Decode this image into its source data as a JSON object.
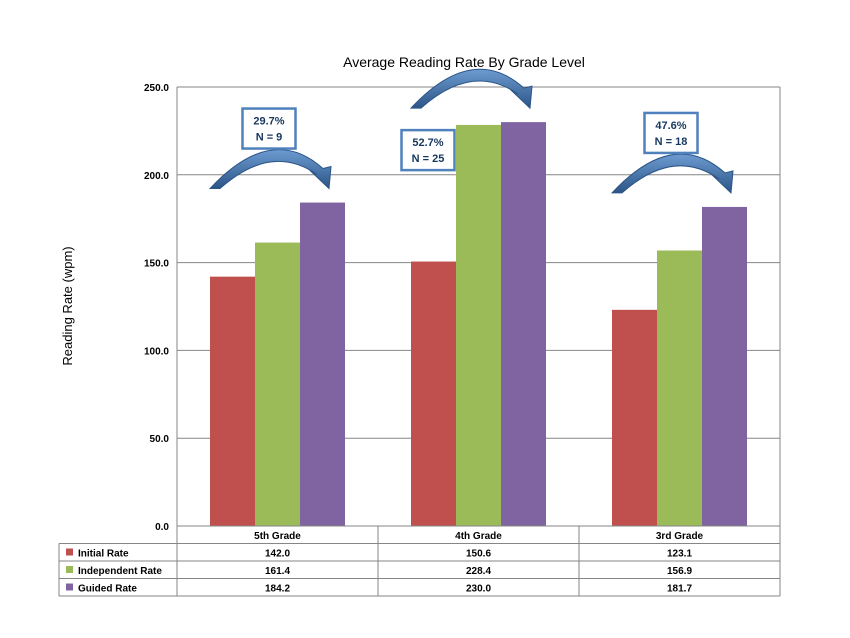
{
  "chart_data": {
    "type": "bar",
    "title": "Average Reading Rate By Grade Level",
    "ylabel": "Reading Rate (wpm)",
    "xlabel": "",
    "ylim": [
      0,
      250
    ],
    "yticks": [
      "0.0",
      "50.0",
      "100.0",
      "150.0",
      "200.0",
      "250.0"
    ],
    "grid": true,
    "legend_placement": "data-table-left",
    "categories": [
      "5th Grade",
      "4th Grade",
      "3rd Grade"
    ],
    "series": [
      {
        "name": "Initial Rate",
        "color": "#C0504D",
        "values": [
          142.0,
          150.6,
          123.1
        ],
        "labels": [
          "142.0",
          "150.6",
          "123.1"
        ]
      },
      {
        "name": "Independent Rate",
        "color": "#9BBB59",
        "values": [
          161.4,
          228.4,
          156.9
        ],
        "labels": [
          "161.4",
          "228.4",
          "156.9"
        ]
      },
      {
        "name": "Guided Rate",
        "color": "#8064A2",
        "values": [
          184.2,
          230.0,
          181.7
        ],
        "labels": [
          "184.2",
          "230.0",
          "181.7"
        ]
      }
    ],
    "annotations": [
      {
        "category": "5th Grade",
        "percent": "29.7%",
        "n": "N = 9"
      },
      {
        "category": "4th Grade",
        "percent": "52.7%",
        "n": "N = 25"
      },
      {
        "category": "3rd Grade",
        "percent": "47.6%",
        "n": "N = 18"
      }
    ],
    "colors": {
      "arrow": "#4F81BD",
      "arrow_dark": "#2C5587",
      "box_border": "#4F81BD",
      "label_text": "#17375E",
      "grid": "#868686"
    }
  }
}
